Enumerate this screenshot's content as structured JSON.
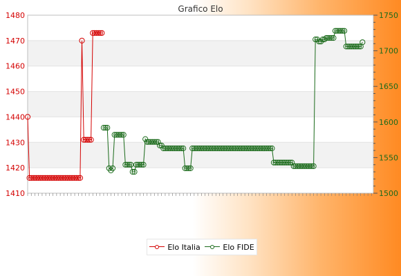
{
  "chart_data": {
    "type": "line",
    "title": "Grafico Elo",
    "left_axis": {
      "min": 1410,
      "max": 1480,
      "ticks": [
        1410,
        1420,
        1430,
        1440,
        1450,
        1460,
        1470,
        1480
      ],
      "color": "#d40000"
    },
    "right_axis": {
      "min": 1500,
      "max": 1750,
      "ticks": [
        1500,
        1550,
        1600,
        1650,
        1700,
        1750
      ],
      "color": "#1a6a1a"
    },
    "grid": true,
    "legend_position": "bottom-center",
    "legend": [
      "Elo Italia",
      "Elo FIDE"
    ],
    "series": [
      {
        "name": "Elo Italia",
        "axis": "left",
        "color": "#d40000",
        "values": [
          1440,
          1416,
          1416,
          1416,
          1416,
          1416,
          1416,
          1416,
          1416,
          1416,
          1416,
          1416,
          1416,
          1416,
          1416,
          1416,
          1416,
          1416,
          1416,
          1416,
          1416,
          1416,
          1416,
          1416,
          1416,
          1416,
          1416,
          1416,
          1416,
          1416,
          1470,
          1431,
          1431,
          1431,
          1431,
          1431,
          1473,
          1473,
          1473,
          1473,
          1473,
          1473
        ]
      },
      {
        "name": "Elo FIDE",
        "axis": "right",
        "color": "#1a6a1a",
        "start_index": 42,
        "values": [
          1592,
          1592,
          1592,
          1535,
          1532,
          1535,
          1582,
          1582,
          1582,
          1582,
          1582,
          1582,
          1540,
          1540,
          1540,
          1540,
          1530,
          1530,
          1540,
          1540,
          1540,
          1540,
          1540,
          1576,
          1572,
          1572,
          1572,
          1572,
          1572,
          1572,
          1572,
          1567,
          1567,
          1563,
          1563,
          1563,
          1563,
          1563,
          1563,
          1563,
          1563,
          1563,
          1563,
          1563,
          1563,
          1535,
          1535,
          1535,
          1535,
          1563,
          1563,
          1563,
          1563,
          1563,
          1563,
          1563,
          1563,
          1563,
          1563,
          1563,
          1563,
          1563,
          1563,
          1563,
          1563,
          1563,
          1563,
          1563,
          1563,
          1563,
          1563,
          1563,
          1563,
          1563,
          1563,
          1563,
          1563,
          1563,
          1563,
          1563,
          1563,
          1563,
          1563,
          1563,
          1563,
          1563,
          1563,
          1563,
          1563,
          1563,
          1563,
          1563,
          1563,
          1563,
          1543,
          1543,
          1543,
          1543,
          1543,
          1543,
          1543,
          1543,
          1543,
          1543,
          1543,
          1538,
          1538,
          1538,
          1538,
          1538,
          1538,
          1538,
          1538,
          1538,
          1538,
          1538,
          1538,
          1716,
          1716,
          1713,
          1713,
          1716,
          1716,
          1718,
          1718,
          1718,
          1718,
          1718,
          1728,
          1728,
          1728,
          1728,
          1728,
          1728,
          1706,
          1706,
          1706,
          1706,
          1706,
          1706,
          1706,
          1706,
          1706,
          1712
        ]
      }
    ],
    "x_label_count": 192
  }
}
